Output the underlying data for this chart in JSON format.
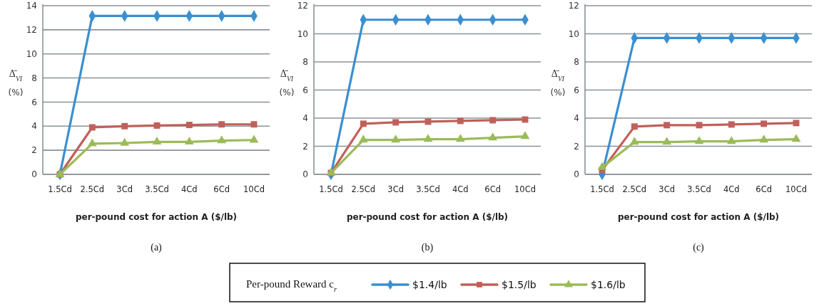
{
  "chart_data": [
    {
      "type": "line",
      "categories": [
        "1.5Cd",
        "2.5Cd",
        "3Cd",
        "3.5Cd",
        "4Cd",
        "6Cd",
        "10Cd"
      ],
      "xlabel": "per-pound cost for action A ($/lb)",
      "ylabel": "Δ̄$_{VI}$ (%)",
      "annotations": [
        "(a)"
      ],
      "ylim": [
        0,
        14
      ],
      "yticks": [
        0,
        2,
        4,
        6,
        8,
        10,
        12,
        14
      ],
      "grid": "y",
      "legend": false,
      "series": [
        {
          "color": "#3a8fd0",
          "marker": "diamond",
          "values": [
            0,
            13.15,
            13.15,
            13.15,
            13.15,
            13.15,
            13.15
          ]
        },
        {
          "color": "#c0605a",
          "marker": "square",
          "values": [
            0,
            3.9,
            4.0,
            4.05,
            4.1,
            4.15,
            4.15
          ]
        },
        {
          "color": "#9bbb59",
          "marker": "triangle",
          "values": [
            0,
            2.55,
            2.6,
            2.7,
            2.7,
            2.8,
            2.85
          ]
        }
      ]
    },
    {
      "type": "line",
      "categories": [
        "1.5Cd",
        "2.5Cd",
        "3Cd",
        "3.5Cd",
        "4Cd",
        "6Cd",
        "10Cd"
      ],
      "xlabel": "per-pound cost for action A ($/lb)",
      "ylabel": "Δ̄$_{VI}$ (%)",
      "annotations": [
        "(b)"
      ],
      "ylim": [
        0,
        12
      ],
      "yticks": [
        0,
        2,
        4,
        6,
        8,
        10,
        12
      ],
      "grid": "y",
      "legend": false,
      "series": [
        {
          "color": "#3a8fd0",
          "marker": "diamond",
          "values": [
            0,
            11.0,
            11.0,
            11.0,
            11.0,
            11.0,
            11.0
          ]
        },
        {
          "color": "#c0605a",
          "marker": "square",
          "values": [
            0.1,
            3.6,
            3.7,
            3.75,
            3.8,
            3.85,
            3.9
          ]
        },
        {
          "color": "#9bbb59",
          "marker": "triangle",
          "values": [
            0.1,
            2.45,
            2.45,
            2.5,
            2.5,
            2.6,
            2.7
          ]
        }
      ]
    },
    {
      "type": "line",
      "categories": [
        "1.5Cd",
        "2.5Cd",
        "3Cd",
        "3.5Cd",
        "4Cd",
        "6Cd",
        "10Cd"
      ],
      "xlabel": "per-pound cost for action A ($/lb)",
      "ylabel": "Δ̄$_{VI}$ (%)",
      "annotations": [
        "(c)"
      ],
      "ylim": [
        0,
        12
      ],
      "yticks": [
        0,
        2,
        4,
        6,
        8,
        10,
        12
      ],
      "grid": "y",
      "legend": "bottom",
      "legend_title": "Per-pound Reward c$_{r}$",
      "series": [
        {
          "name": "$1.4/lb",
          "color": "#3a8fd0",
          "marker": "diamond",
          "values": [
            0,
            9.7,
            9.7,
            9.7,
            9.7,
            9.7,
            9.7
          ]
        },
        {
          "name": "$1.5/lb",
          "color": "#c0605a",
          "marker": "square",
          "values": [
            0.3,
            3.4,
            3.5,
            3.5,
            3.55,
            3.6,
            3.65
          ]
        },
        {
          "name": "$1.6/lb",
          "color": "#9bbb59",
          "marker": "triangle",
          "values": [
            0.5,
            2.3,
            2.3,
            2.35,
            2.35,
            2.45,
            2.5
          ]
        }
      ]
    }
  ]
}
